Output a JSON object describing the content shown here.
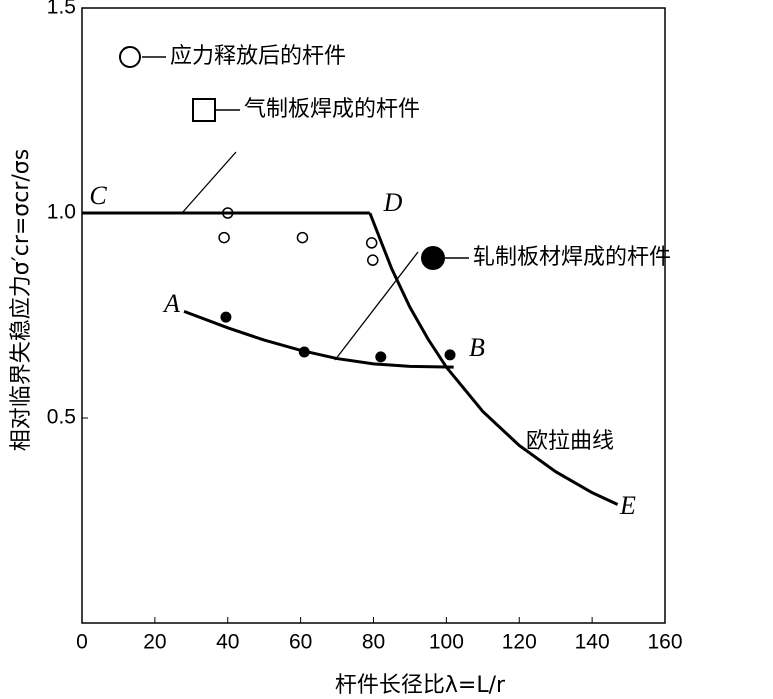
{
  "chart_data": {
    "type": "scatter",
    "xlabel": "杆件长径比λ=L/r",
    "ylabel": "相对临界失稳应力σ′cr=σcr/σs",
    "xlim": [
      0,
      160
    ],
    "ylim": [
      0,
      1.5
    ],
    "xticks": [
      0,
      20,
      40,
      60,
      80,
      100,
      120,
      140,
      160
    ],
    "yticks": [
      0.5,
      {
        "value": 1,
        "label": "1.0"
      },
      1.5
    ],
    "annotations": [
      "C",
      "D",
      "A",
      "B",
      "E",
      "欧拉曲线"
    ],
    "series": [
      {
        "name": "应力释放后的杆件",
        "marker": "open-circle",
        "color": "#000000",
        "x": [
          40,
          39,
          60.5,
          79.5,
          79.8
        ],
        "values": [
          1.0,
          0.94,
          0.94,
          0.927,
          0.885
        ]
      },
      {
        "name": "气制板焊成的杆件",
        "marker": "square",
        "color": "#000000",
        "x": [],
        "values": []
      },
      {
        "name": "轧制板材焊成的杆件",
        "marker": "filled-circle",
        "color": "#000000",
        "x": [
          39.5,
          61,
          82,
          101
        ],
        "values": [
          0.746,
          0.661,
          0.649,
          0.654
        ]
      },
      {
        "marker": "line",
        "color": "#000000",
        "x": [
          0,
          79
        ],
        "values": [
          1,
          1
        ]
      },
      {
        "marker": "line",
        "color": "#000000",
        "x": [
          79,
          85,
          90,
          95,
          100,
          110,
          120,
          130,
          140,
          147
        ],
        "values": [
          1,
          0.864,
          0.77,
          0.692,
          0.624,
          0.516,
          0.433,
          0.369,
          0.318,
          0.289
        ]
      },
      {
        "marker": "line",
        "color": "#000000",
        "x": [
          28,
          40,
          50,
          60,
          70,
          80,
          90,
          102
        ],
        "values": [
          0.76,
          0.72,
          0.69,
          0.665,
          0.645,
          0.632,
          0.626,
          0.624
        ]
      }
    ]
  }
}
